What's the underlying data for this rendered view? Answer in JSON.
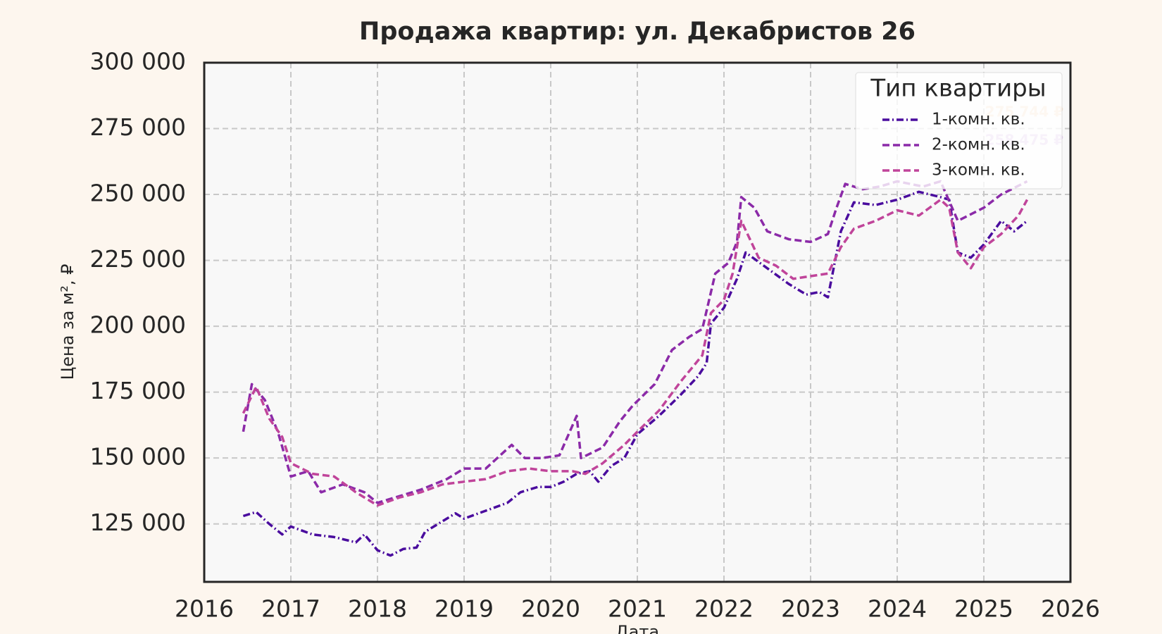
{
  "chart_data": {
    "type": "line",
    "title": "Продажа квартир: ул. Декабристов 26",
    "x_label": "Дата",
    "y_label": "Цена за м², ₽",
    "legend_title": "Тип квартиры",
    "legend": "upper right",
    "grid": true,
    "xlim": [
      2016,
      2026
    ],
    "xticks": [
      2016,
      2017,
      2018,
      2019,
      2020,
      2021,
      2022,
      2023,
      2024,
      2025,
      2026
    ],
    "ylim": [
      103000,
      300000
    ],
    "yticks": [
      {
        "value": 125000,
        "label": "125 000"
      },
      {
        "value": 150000,
        "label": "150 000"
      },
      {
        "value": 175000,
        "label": "175 000"
      },
      {
        "value": 200000,
        "label": "200 000"
      },
      {
        "value": 225000,
        "label": "225 000"
      },
      {
        "value": 250000,
        "label": "250 000"
      },
      {
        "value": 275000,
        "label": "275 000"
      },
      {
        "value": 300000,
        "label": "300 000"
      }
    ],
    "annotations": [
      "275 744 ₽",
      "258 475 ₽"
    ],
    "series": [
      {
        "name": "1-комн. кв.",
        "color": "#4a0c9e",
        "linestyle": "dashdot",
        "x": [
          2016.45,
          2016.6,
          2016.75,
          2016.9,
          2017.0,
          2017.25,
          2017.5,
          2017.75,
          2017.85,
          2018.0,
          2018.15,
          2018.3,
          2018.45,
          2018.55,
          2018.75,
          2018.9,
          2019.0,
          2019.25,
          2019.5,
          2019.65,
          2019.85,
          2020.0,
          2020.15,
          2020.3,
          2020.45,
          2020.55,
          2020.7,
          2020.85,
          2021.0,
          2021.25,
          2021.5,
          2021.7,
          2021.8,
          2021.85,
          2022.0,
          2022.15,
          2022.25,
          2022.5,
          2022.75,
          2022.95,
          2023.1,
          2023.2,
          2023.35,
          2023.5,
          2023.75,
          2024.0,
          2024.25,
          2024.5,
          2024.6,
          2024.7,
          2024.85,
          2025.0,
          2025.2,
          2025.35,
          2025.5
        ],
        "values": [
          128000,
          129500,
          125000,
          121000,
          124000,
          121000,
          120000,
          118000,
          121000,
          115000,
          113000,
          115500,
          116000,
          122000,
          126000,
          129000,
          127000,
          130000,
          133000,
          137000,
          139000,
          139000,
          141000,
          144000,
          145000,
          141000,
          147000,
          150000,
          159000,
          166000,
          174000,
          181000,
          186000,
          201000,
          207000,
          218000,
          228000,
          222000,
          216000,
          212000,
          213000,
          211000,
          236000,
          247000,
          246000,
          248000,
          251000,
          249000,
          248000,
          228000,
          226000,
          231000,
          240000,
          236000,
          240000
        ]
      },
      {
        "name": "2-комн. кв.",
        "color": "#8b2aa8",
        "linestyle": "dashed",
        "x": [
          2016.45,
          2016.55,
          2016.7,
          2016.85,
          2017.0,
          2017.2,
          2017.35,
          2017.6,
          2017.85,
          2018.0,
          2018.2,
          2018.5,
          2018.8,
          2019.0,
          2019.25,
          2019.55,
          2019.7,
          2019.9,
          2020.1,
          2020.3,
          2020.35,
          2020.6,
          2020.8,
          2020.95,
          2021.2,
          2021.4,
          2021.6,
          2021.75,
          2021.9,
          2022.05,
          2022.15,
          2022.2,
          2022.35,
          2022.5,
          2022.75,
          2023.0,
          2023.2,
          2023.3,
          2023.4,
          2023.6,
          2023.8,
          2024.0,
          2024.3,
          2024.5,
          2024.7,
          2025.0,
          2025.2,
          2025.5
        ],
        "values": [
          160000,
          178000,
          172000,
          160000,
          143000,
          145000,
          137000,
          140000,
          137000,
          133000,
          135000,
          138000,
          142000,
          146000,
          146000,
          155000,
          150000,
          150000,
          151000,
          166000,
          150000,
          154000,
          164000,
          170000,
          178000,
          191000,
          196000,
          199000,
          220000,
          224000,
          232000,
          249000,
          245000,
          236000,
          233000,
          232000,
          235000,
          245000,
          254000,
          252000,
          253000,
          255000,
          253000,
          255000,
          240000,
          245000,
          250000,
          255000
        ]
      },
      {
        "name": "3-комн. кв.",
        "color": "#c0449a",
        "linestyle": "dashed",
        "x": [
          2016.45,
          2016.6,
          2016.75,
          2016.9,
          2017.0,
          2017.25,
          2017.5,
          2017.75,
          2018.0,
          2018.25,
          2018.5,
          2018.75,
          2019.0,
          2019.25,
          2019.5,
          2019.75,
          2020.0,
          2020.25,
          2020.4,
          2020.6,
          2020.85,
          2021.0,
          2021.25,
          2021.5,
          2021.75,
          2021.85,
          2022.0,
          2022.1,
          2022.2,
          2022.4,
          2022.6,
          2022.8,
          2023.0,
          2023.2,
          2023.35,
          2023.5,
          2023.75,
          2024.0,
          2024.25,
          2024.5,
          2024.6,
          2024.7,
          2024.85,
          2025.0,
          2025.2,
          2025.4,
          2025.5
        ],
        "values": [
          167000,
          177000,
          165000,
          158000,
          148000,
          144000,
          143000,
          137000,
          132000,
          135000,
          137000,
          140000,
          141000,
          142000,
          145000,
          146000,
          145000,
          145000,
          144000,
          148000,
          155000,
          160000,
          168000,
          179000,
          189000,
          205000,
          210000,
          220000,
          240000,
          226000,
          223000,
          218000,
          219000,
          220000,
          230000,
          237000,
          240000,
          244000,
          242000,
          248000,
          245000,
          228000,
          222000,
          230000,
          235000,
          242000,
          248000
        ]
      }
    ]
  }
}
